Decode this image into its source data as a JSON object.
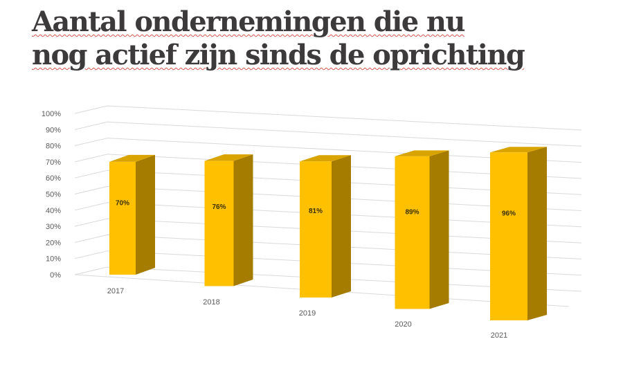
{
  "title": {
    "line1": "Aantal ondernemingen die nu",
    "line2": "nog actief zijn sinds de oprichting"
  },
  "colors": {
    "bar_front": "#ffc000",
    "bar_top": "#d9a300",
    "bar_side": "#a67c00",
    "grid": "#d9d9d9",
    "title": "#3d3a3c"
  },
  "chart_data": {
    "type": "bar",
    "title": "Aantal ondernemingen die nu nog actief zijn sinds de oprichting",
    "xlabel": "",
    "ylabel": "",
    "categories": [
      "2017",
      "2018",
      "2019",
      "2020",
      "2021"
    ],
    "values": [
      0.7,
      0.76,
      0.81,
      0.89,
      0.96
    ],
    "data_labels": [
      "70%",
      "76%",
      "81%",
      "89%",
      "96%"
    ],
    "ylim": [
      0,
      1.0
    ],
    "y_ticks": [
      "0%",
      "10%",
      "20%",
      "30%",
      "40%",
      "50%",
      "60%",
      "70%",
      "80%",
      "90%",
      "100%"
    ],
    "grid": true,
    "legend": "none",
    "style": "3d"
  }
}
